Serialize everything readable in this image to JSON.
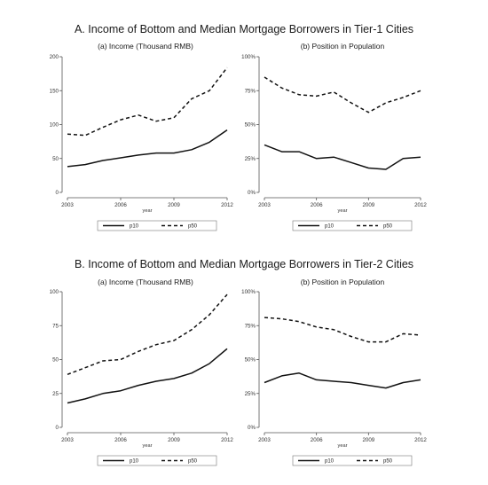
{
  "sections": [
    {
      "title": "A. Income of Bottom and Median Mortgage Borrowers in Tier-1 Cities"
    },
    {
      "title": "B. Income of Bottom and Median Mortgage Borrowers in Tier-2 Cities"
    }
  ],
  "chart_data": [
    {
      "type": "line",
      "title": "(a) Income (Thousand RMB)",
      "xlabel": "year",
      "ylabel": "",
      "x": [
        2003,
        2004,
        2005,
        2006,
        2007,
        2008,
        2009,
        2010,
        2011,
        2012
      ],
      "xticks": [
        "2003",
        "2006",
        "2009",
        "2012"
      ],
      "yticks": [
        "0",
        "50",
        "100",
        "150",
        "200"
      ],
      "ylim": [
        0,
        200
      ],
      "legend": "bottom",
      "series": [
        {
          "name": "p10",
          "style": "solid",
          "values": [
            38,
            41,
            47,
            51,
            55,
            58,
            58,
            63,
            74,
            92
          ]
        },
        {
          "name": "p50",
          "style": "dashed",
          "values": [
            86,
            84,
            96,
            107,
            114,
            105,
            110,
            138,
            150,
            184
          ]
        }
      ]
    },
    {
      "type": "line",
      "title": "(b) Position in Population",
      "xlabel": "year",
      "ylabel": "",
      "x": [
        2003,
        2004,
        2005,
        2006,
        2007,
        2008,
        2009,
        2010,
        2011,
        2012
      ],
      "xticks": [
        "2003",
        "2006",
        "2009",
        "2012"
      ],
      "yticks": [
        "0%",
        "25%",
        "50%",
        "75%",
        "100%"
      ],
      "ylim": [
        0,
        100
      ],
      "legend": "bottom",
      "series": [
        {
          "name": "p10",
          "style": "solid",
          "values": [
            35,
            30,
            30,
            25,
            26,
            22,
            18,
            17,
            25,
            26
          ]
        },
        {
          "name": "p50",
          "style": "dashed",
          "values": [
            85,
            77,
            72,
            71,
            74,
            66,
            59,
            66,
            70,
            75
          ]
        }
      ]
    },
    {
      "type": "line",
      "title": "(a) Income (Thousand RMB)",
      "xlabel": "year",
      "ylabel": "",
      "x": [
        2003,
        2004,
        2005,
        2006,
        2007,
        2008,
        2009,
        2010,
        2011,
        2012
      ],
      "xticks": [
        "2003",
        "2006",
        "2009",
        "2012"
      ],
      "yticks": [
        "0",
        "25",
        "50",
        "75",
        "100"
      ],
      "ylim": [
        0,
        100
      ],
      "legend": "bottom",
      "series": [
        {
          "name": "p10",
          "style": "solid",
          "values": [
            18,
            21,
            25,
            27,
            31,
            34,
            36,
            40,
            47,
            58
          ]
        },
        {
          "name": "p50",
          "style": "dashed",
          "values": [
            39,
            44,
            49,
            50,
            56,
            61,
            64,
            72,
            83,
            98
          ]
        }
      ]
    },
    {
      "type": "line",
      "title": "(b) Position in Population",
      "xlabel": "year",
      "ylabel": "",
      "x": [
        2003,
        2004,
        2005,
        2006,
        2007,
        2008,
        2009,
        2010,
        2011,
        2012
      ],
      "xticks": [
        "2003",
        "2006",
        "2009",
        "2012"
      ],
      "yticks": [
        "0%",
        "25%",
        "50%",
        "75%",
        "100%"
      ],
      "ylim": [
        0,
        100
      ],
      "legend": "bottom",
      "series": [
        {
          "name": "p10",
          "style": "solid",
          "values": [
            33,
            38,
            40,
            35,
            34,
            33,
            31,
            29,
            33,
            35
          ]
        },
        {
          "name": "p50",
          "style": "dashed",
          "values": [
            81,
            80,
            78,
            74,
            72,
            67,
            63,
            63,
            69,
            68
          ]
        }
      ]
    }
  ]
}
